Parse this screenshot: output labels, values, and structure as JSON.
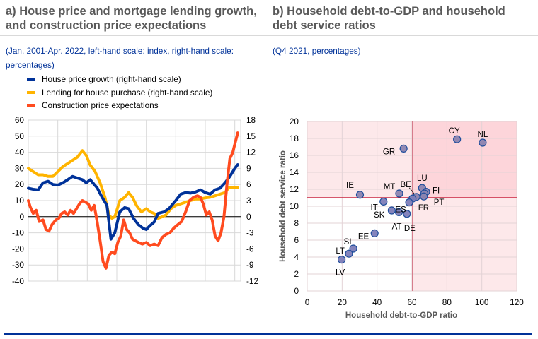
{
  "panel_a": {
    "title_line1": "a) House price and mortgage lending growth,",
    "title_line2": "and construction price expectations",
    "subtitle_line1": "(Jan. 2001-Apr. 2022, left-hand scale: index, right-hand scale:",
    "subtitle_line2": "percentages)"
  },
  "panel_b": {
    "title_line1": "b) Household debt-to-GDP and household",
    "title_line2": "debt service ratios",
    "subtitle": "(Q4 2021, percentages)"
  },
  "colors": {
    "house_price": "#003299",
    "lending": "#ffb400",
    "construction": "#ff4b1f",
    "scatter_point": "#7d7db8",
    "scatter_point_stroke": "#1f4e9c",
    "scatter_high_point": "#8c84b0",
    "threshold_line": "#c00020",
    "region_light": "#fde8ea",
    "region_dark": "#fdd5da",
    "title": "#595959",
    "subtitle": "#003299"
  },
  "chart_data": [
    {
      "type": "line",
      "title": "a) House price and mortgage lending growth, and construction price expectations",
      "subtitle": "(Jan. 2001-Apr. 2022, left-hand scale: index, right-hand scale: percentages)",
      "x_ticks": [
        "2001",
        "2004",
        "2007",
        "2010",
        "2013",
        "2016",
        "2019",
        "2022"
      ],
      "xlim": [
        2001,
        2022.6
      ],
      "y_left": {
        "label": "index",
        "ylim": [
          -40,
          60
        ],
        "ticks": [
          "60",
          "50",
          "40",
          "30",
          "20",
          "10",
          "0",
          "-10",
          "-20",
          "-30",
          "-40"
        ]
      },
      "y_right": {
        "label": "percentages",
        "ylim": [
          -12,
          18
        ],
        "ticks": [
          "18",
          "15",
          "12",
          "9",
          "6",
          "3",
          "0",
          "-3",
          "-6",
          "-9",
          "-12"
        ]
      },
      "grid": true,
      "legend_position": "top",
      "series": [
        {
          "name": "House price growth (right-hand scale)",
          "axis": "right",
          "color_key": "house_price",
          "x": [
            2001.0,
            2001.5,
            2002.0,
            2002.5,
            2003.0,
            2003.5,
            2004.0,
            2004.5,
            2005.0,
            2005.5,
            2006.0,
            2006.5,
            2006.9,
            2007.3,
            2007.7,
            2008.0,
            2008.5,
            2009.0,
            2009.4,
            2009.8,
            2010.3,
            2010.8,
            2011.2,
            2011.7,
            2012.2,
            2012.7,
            2013.0,
            2013.3,
            2013.8,
            2014.2,
            2014.8,
            2015.3,
            2016.0,
            2016.5,
            2017.0,
            2017.5,
            2018.0,
            2018.5,
            2019.0,
            2019.5,
            2020.0,
            2020.5,
            2021.0,
            2021.5,
            2022.0,
            2022.3
          ],
          "values": [
            5.3,
            5.1,
            5.0,
            6.3,
            6.6,
            6.0,
            5.9,
            6.3,
            6.9,
            7.5,
            7.2,
            6.9,
            6.3,
            6.9,
            6.0,
            5.4,
            3.6,
            2.1,
            -4.2,
            -3.0,
            0.9,
            1.7,
            1.5,
            -0.3,
            -1.5,
            -2.2,
            -2.4,
            -1.8,
            -1.0,
            0.6,
            0.9,
            1.5,
            3.0,
            4.2,
            4.5,
            4.4,
            4.6,
            5.0,
            4.5,
            4.2,
            5.0,
            5.3,
            6.3,
            7.5,
            9.0,
            9.7
          ]
        },
        {
          "name": "Lending for house purchase (right-hand scale)",
          "axis": "right",
          "color_key": "lending",
          "x": [
            2001.0,
            2001.5,
            2002.0,
            2002.5,
            2003.0,
            2003.5,
            2004.0,
            2004.5,
            2005.0,
            2005.5,
            2006.0,
            2006.5,
            2006.9,
            2007.3,
            2007.8,
            2008.3,
            2008.8,
            2009.2,
            2009.5,
            2009.8,
            2010.3,
            2010.8,
            2011.2,
            2011.6,
            2012.0,
            2012.5,
            2013.0,
            2013.4,
            2013.8,
            2014.2,
            2014.5,
            2015.0,
            2015.5,
            2016.0,
            2016.5,
            2017.0,
            2017.5,
            2018.0,
            2018.5,
            2019.0,
            2019.5,
            2020.0,
            2020.5,
            2021.0,
            2021.4,
            2021.8,
            2022.3
          ],
          "values": [
            9.0,
            8.4,
            7.8,
            7.8,
            7.5,
            7.5,
            8.4,
            9.3,
            9.9,
            10.5,
            11.1,
            12.3,
            11.4,
            9.6,
            8.4,
            6.3,
            3.6,
            0.3,
            -0.3,
            0.0,
            3.0,
            3.6,
            4.5,
            3.6,
            2.1,
            0.9,
            1.5,
            0.9,
            0.6,
            -0.3,
            -0.1,
            0.3,
            1.5,
            2.1,
            2.4,
            2.7,
            3.0,
            3.3,
            3.3,
            3.5,
            3.6,
            3.9,
            4.2,
            4.5,
            5.4,
            5.4,
            5.4
          ]
        },
        {
          "name": "Construction price expectations",
          "axis": "left",
          "color_key": "construction",
          "x": [
            2001.0,
            2001.2,
            2001.5,
            2001.8,
            2002.1,
            2002.5,
            2002.8,
            2003.1,
            2003.4,
            2003.8,
            2004.1,
            2004.4,
            2004.7,
            2005.0,
            2005.3,
            2005.6,
            2005.9,
            2006.2,
            2006.5,
            2006.8,
            2007.1,
            2007.4,
            2007.7,
            2008.0,
            2008.3,
            2008.6,
            2008.9,
            2009.2,
            2009.5,
            2009.8,
            2010.1,
            2010.4,
            2010.7,
            2011.0,
            2011.3,
            2011.6,
            2011.9,
            2012.2,
            2012.6,
            2013.0,
            2013.4,
            2013.8,
            2014.2,
            2014.6,
            2015.0,
            2015.4,
            2015.8,
            2016.2,
            2016.6,
            2017.0,
            2017.4,
            2017.8,
            2018.2,
            2018.5,
            2018.8,
            2019.1,
            2019.4,
            2019.7,
            2020.0,
            2020.3,
            2020.6,
            2020.9,
            2021.2,
            2021.5,
            2021.8,
            2022.0,
            2022.3
          ],
          "values": [
            10,
            6,
            2,
            4,
            -3,
            -2,
            -8,
            -9,
            -5,
            -2,
            -1,
            2,
            3,
            1,
            4,
            2,
            5,
            8,
            10,
            9,
            8,
            4,
            7,
            -3,
            -15,
            -28,
            -32,
            -24,
            -22,
            -23,
            -16,
            -12,
            -2,
            -8,
            -10,
            -14,
            -15,
            -16,
            -17,
            -16,
            -18,
            -17,
            -18,
            -13,
            -11,
            -10,
            -7,
            -5,
            -3,
            3,
            10,
            12,
            13,
            12,
            8,
            1,
            3,
            -2,
            -12,
            -15,
            -10,
            0,
            20,
            36,
            40,
            45,
            52
          ]
        }
      ]
    },
    {
      "type": "scatter",
      "title": "b) Household debt-to-GDP and household debt service ratios",
      "subtitle": "(Q4 2021, percentages)",
      "xlabel": "Household debt-to-GDP ratio",
      "ylabel": "Household debt service ratio",
      "xlim": [
        0,
        120
      ],
      "ylim": [
        0,
        20
      ],
      "x_ticks": [
        "0",
        "20",
        "40",
        "60",
        "80",
        "100",
        "120"
      ],
      "y_ticks": [
        "0",
        "2",
        "4",
        "6",
        "8",
        "10",
        "12",
        "14",
        "16",
        "18",
        "20"
      ],
      "grid": true,
      "thresholds": {
        "x": 60.5,
        "y": 11.0
      },
      "points": [
        {
          "label": "CY",
          "x": 85.8,
          "y": 17.9
        },
        {
          "label": "NL",
          "x": 100.5,
          "y": 17.5
        },
        {
          "label": "GR",
          "x": 55.2,
          "y": 16.8
        },
        {
          "label": "IE",
          "x": 30.2,
          "y": 11.35
        },
        {
          "label": "MT",
          "x": 52.7,
          "y": 11.5
        },
        {
          "label": "LU",
          "x": 65.8,
          "y": 12.15
        },
        {
          "label": "FI",
          "x": 68.1,
          "y": 11.7
        },
        {
          "label": "",
          "x": 67.1,
          "y": 11.5
        },
        {
          "label": "PT",
          "x": 66.8,
          "y": 11.15
        },
        {
          "label": "BE",
          "x": 62.5,
          "y": 11.1
        },
        {
          "label": "FR",
          "x": 60.3,
          "y": 10.9
        },
        {
          "label": "ES",
          "x": 58.4,
          "y": 10.45
        },
        {
          "label": "IT",
          "x": 43.7,
          "y": 10.55
        },
        {
          "label": "SK",
          "x": 48.4,
          "y": 9.5
        },
        {
          "label": "AT",
          "x": 52.5,
          "y": 9.3
        },
        {
          "label": "DE",
          "x": 57.1,
          "y": 9.1
        },
        {
          "label": "EE",
          "x": 38.6,
          "y": 6.8
        },
        {
          "label": "SI",
          "x": 26.4,
          "y": 5.0
        },
        {
          "label": "LT",
          "x": 23.9,
          "y": 4.4
        },
        {
          "label": "LV",
          "x": 19.7,
          "y": 3.7
        }
      ]
    }
  ]
}
